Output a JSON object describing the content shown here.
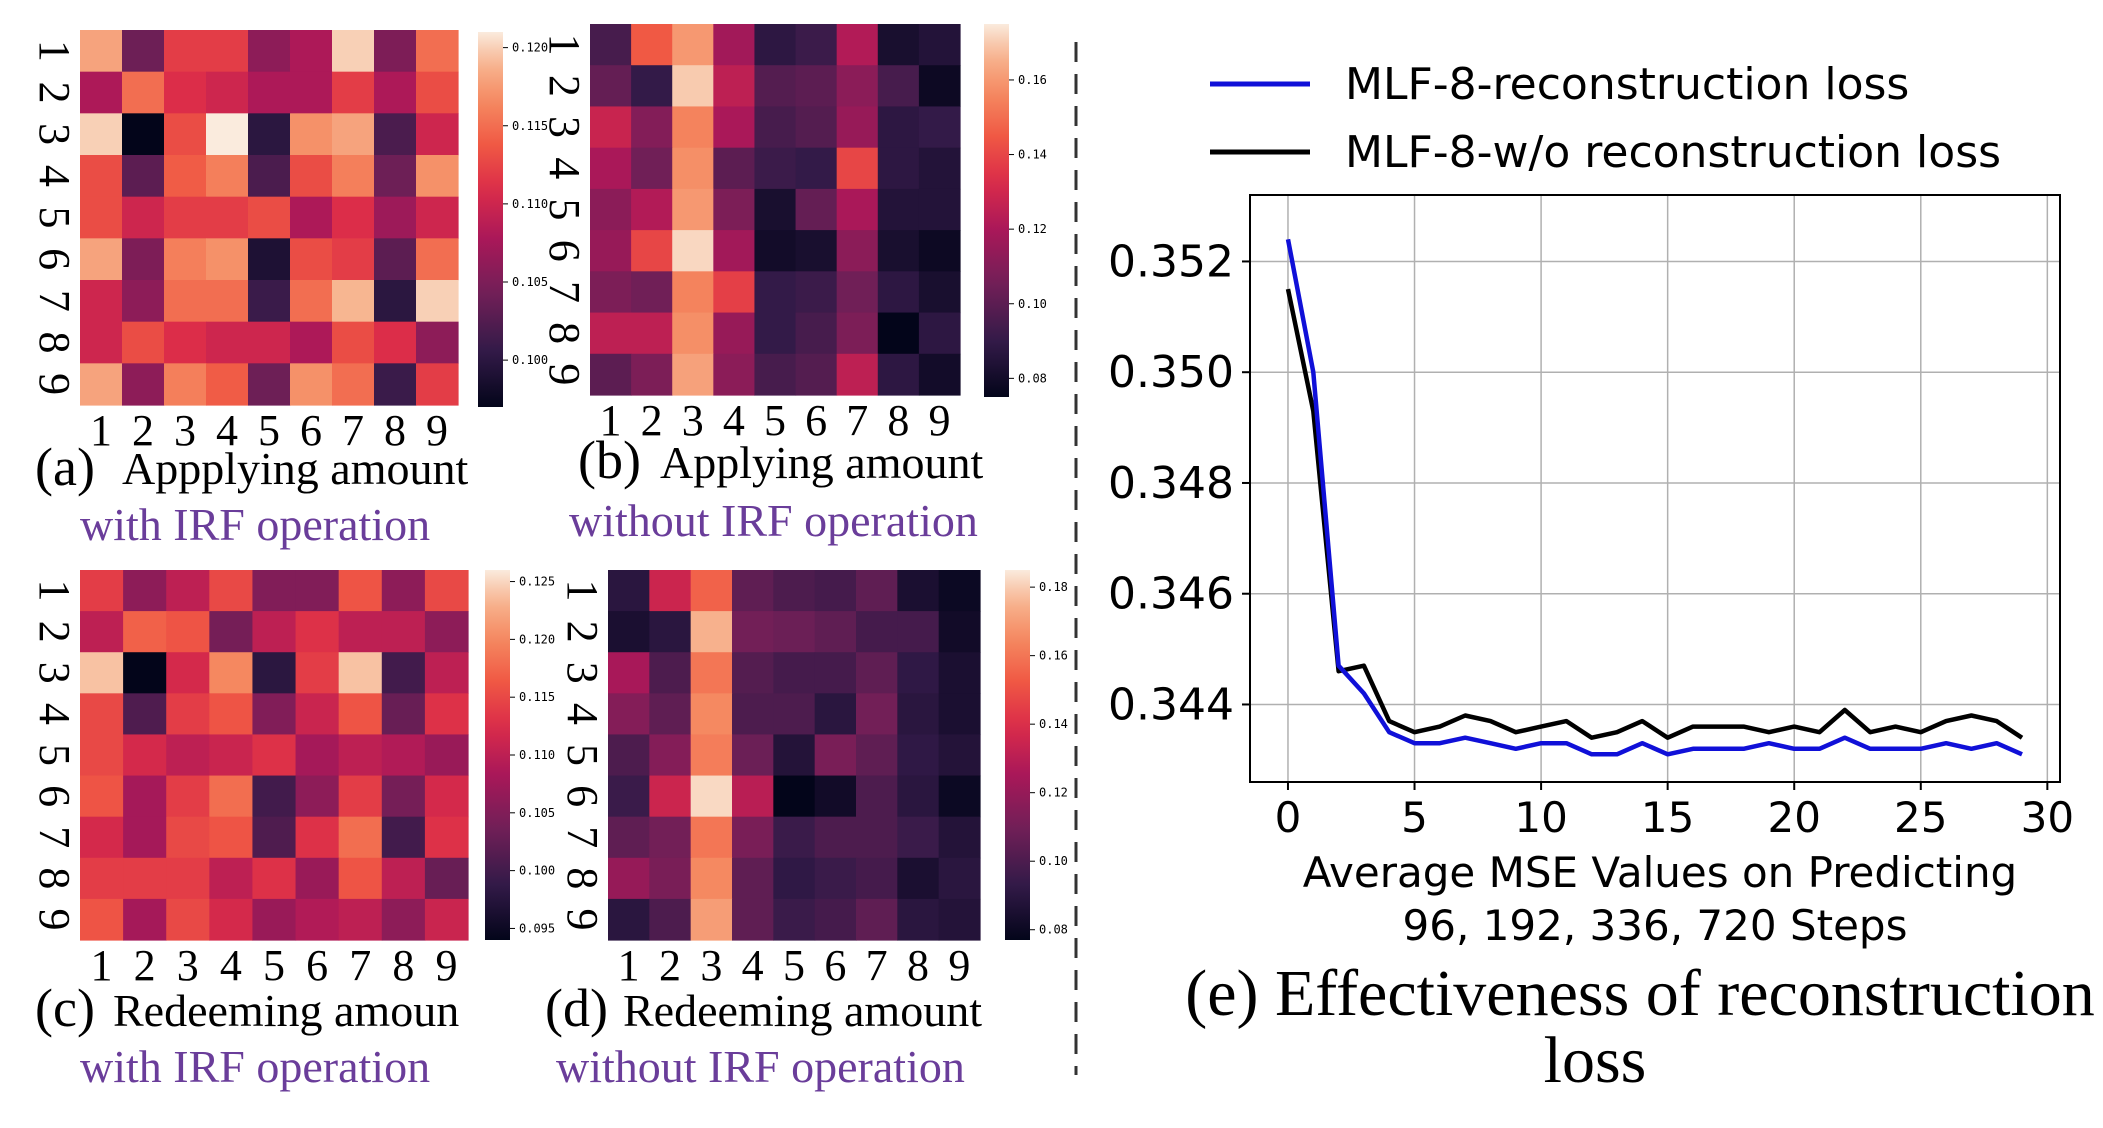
{
  "colors": {
    "purple_caption": "#6a3d9a",
    "blue_line": "#1010d8",
    "black_line": "#000000",
    "grid": "#b0b0b0"
  },
  "captions": {
    "a": {
      "label": "(a)",
      "text": "Appplying amount",
      "sub": "with IRF operation"
    },
    "b": {
      "label": "(b)",
      "text": "Applying amount",
      "sub": "without IRF operation"
    },
    "c": {
      "label": "(c)",
      "text": "Redeeming amoun",
      "sub": "with IRF operation"
    },
    "d": {
      "label": "(d)",
      "text": "Redeeming amount",
      "sub": "without IRF operation"
    },
    "e": {
      "line1": "(e) Effectiveness of reconstruction",
      "line2": "loss"
    }
  },
  "chart_data": [
    {
      "type": "heatmap",
      "id": "a",
      "title": "(a) Appplying amount with IRF operation",
      "row_labels": [
        "1",
        "2",
        "3",
        "4",
        "5",
        "6",
        "7",
        "8",
        "9"
      ],
      "col_labels": [
        "1",
        "2",
        "3",
        "4",
        "5",
        "6",
        "7",
        "8",
        "9"
      ],
      "colorbar": {
        "vmin": 0.097,
        "vmax": 0.121,
        "ticks": [
          0.1,
          0.105,
          0.11,
          0.115,
          0.12
        ],
        "tick_labels": [
          "0.100",
          "0.105",
          "0.110",
          "0.115",
          "0.120"
        ]
      },
      "values": [
        [
          0.118,
          0.104,
          0.112,
          0.112,
          0.106,
          0.108,
          0.12,
          0.105,
          0.115
        ],
        [
          0.108,
          0.115,
          0.111,
          0.11,
          0.108,
          0.108,
          0.112,
          0.108,
          0.113
        ],
        [
          0.12,
          0.097,
          0.113,
          0.121,
          0.1,
          0.117,
          0.118,
          0.102,
          0.11
        ],
        [
          0.113,
          0.103,
          0.114,
          0.116,
          0.102,
          0.113,
          0.116,
          0.104,
          0.117
        ],
        [
          0.113,
          0.11,
          0.112,
          0.112,
          0.113,
          0.108,
          0.111,
          0.107,
          0.11
        ],
        [
          0.118,
          0.105,
          0.116,
          0.117,
          0.099,
          0.113,
          0.112,
          0.103,
          0.115
        ],
        [
          0.11,
          0.106,
          0.115,
          0.115,
          0.101,
          0.115,
          0.119,
          0.1,
          0.12
        ],
        [
          0.11,
          0.113,
          0.111,
          0.11,
          0.11,
          0.108,
          0.113,
          0.111,
          0.106
        ],
        [
          0.118,
          0.106,
          0.116,
          0.114,
          0.104,
          0.117,
          0.115,
          0.101,
          0.112
        ]
      ]
    },
    {
      "type": "heatmap",
      "id": "b",
      "title": "(b) Applying amount without IRF operation",
      "row_labels": [
        "1",
        "2",
        "3",
        "4",
        "5",
        "6",
        "7",
        "8",
        "9"
      ],
      "col_labels": [
        "1",
        "2",
        "3",
        "4",
        "5",
        "6",
        "7",
        "8",
        "9"
      ],
      "colorbar": {
        "vmin": 0.075,
        "vmax": 0.175,
        "ticks": [
          0.08,
          0.1,
          0.12,
          0.14,
          0.16
        ],
        "tick_labels": [
          "0.08",
          "0.10",
          "0.12",
          "0.14",
          "0.16"
        ]
      },
      "values": [
        [
          0.095,
          0.145,
          0.16,
          0.118,
          0.088,
          0.092,
          0.122,
          0.082,
          0.085
        ],
        [
          0.102,
          0.09,
          0.17,
          0.125,
          0.098,
          0.1,
          0.112,
          0.095,
          0.078
        ],
        [
          0.128,
          0.11,
          0.155,
          0.12,
          0.095,
          0.098,
          0.115,
          0.088,
          0.09
        ],
        [
          0.12,
          0.105,
          0.158,
          0.1,
          0.092,
          0.09,
          0.14,
          0.088,
          0.085
        ],
        [
          0.112,
          0.122,
          0.16,
          0.108,
          0.082,
          0.102,
          0.12,
          0.085,
          0.085
        ],
        [
          0.115,
          0.14,
          0.172,
          0.118,
          0.08,
          0.082,
          0.112,
          0.082,
          0.078
        ],
        [
          0.108,
          0.105,
          0.155,
          0.138,
          0.09,
          0.092,
          0.105,
          0.088,
          0.082
        ],
        [
          0.125,
          0.125,
          0.158,
          0.115,
          0.09,
          0.095,
          0.108,
          0.075,
          0.088
        ],
        [
          0.1,
          0.108,
          0.162,
          0.112,
          0.095,
          0.098,
          0.125,
          0.088,
          0.08
        ]
      ]
    },
    {
      "type": "heatmap",
      "id": "c",
      "title": "(c) Redeeming amoun with IRF operation",
      "row_labels": [
        "1",
        "2",
        "3",
        "4",
        "5",
        "6",
        "7",
        "8",
        "9"
      ],
      "col_labels": [
        "1",
        "2",
        "3",
        "4",
        "5",
        "6",
        "7",
        "8",
        "9"
      ],
      "colorbar": {
        "vmin": 0.094,
        "vmax": 0.126,
        "ticks": [
          0.095,
          0.1,
          0.105,
          0.11,
          0.115,
          0.12,
          0.125
        ],
        "tick_labels": [
          "0.095",
          "0.100",
          "0.105",
          "0.110",
          "0.115",
          "0.120",
          "0.125"
        ]
      },
      "values": [
        [
          0.114,
          0.106,
          0.11,
          0.115,
          0.105,
          0.105,
          0.116,
          0.106,
          0.115
        ],
        [
          0.11,
          0.117,
          0.116,
          0.104,
          0.11,
          0.113,
          0.11,
          0.11,
          0.106
        ],
        [
          0.124,
          0.094,
          0.112,
          0.12,
          0.098,
          0.114,
          0.124,
          0.1,
          0.11
        ],
        [
          0.115,
          0.101,
          0.114,
          0.116,
          0.105,
          0.111,
          0.116,
          0.103,
          0.113
        ],
        [
          0.115,
          0.112,
          0.11,
          0.111,
          0.113,
          0.108,
          0.11,
          0.109,
          0.107
        ],
        [
          0.116,
          0.108,
          0.114,
          0.118,
          0.1,
          0.106,
          0.114,
          0.104,
          0.112
        ],
        [
          0.112,
          0.108,
          0.115,
          0.116,
          0.101,
          0.113,
          0.118,
          0.1,
          0.113
        ],
        [
          0.114,
          0.114,
          0.114,
          0.11,
          0.113,
          0.107,
          0.116,
          0.11,
          0.103
        ],
        [
          0.116,
          0.108,
          0.115,
          0.112,
          0.107,
          0.109,
          0.11,
          0.106,
          0.111
        ]
      ]
    },
    {
      "type": "heatmap",
      "id": "d",
      "title": "(d) Redeeming amount without IRF operation",
      "row_labels": [
        "1",
        "2",
        "3",
        "4",
        "5",
        "6",
        "7",
        "8",
        "9"
      ],
      "col_labels": [
        "1",
        "2",
        "3",
        "4",
        "5",
        "6",
        "7",
        "8",
        "9"
      ],
      "colorbar": {
        "vmin": 0.077,
        "vmax": 0.185,
        "ticks": [
          0.08,
          0.1,
          0.12,
          0.14,
          0.16,
          0.18
        ],
        "tick_labels": [
          "0.08",
          "0.10",
          "0.12",
          "0.14",
          "0.16",
          "0.18"
        ]
      },
      "values": [
        [
          0.09,
          0.135,
          0.155,
          0.105,
          0.1,
          0.098,
          0.105,
          0.085,
          0.08
        ],
        [
          0.085,
          0.09,
          0.175,
          0.11,
          0.108,
          0.105,
          0.098,
          0.098,
          0.082
        ],
        [
          0.125,
          0.1,
          0.16,
          0.102,
          0.098,
          0.098,
          0.105,
          0.092,
          0.085
        ],
        [
          0.115,
          0.105,
          0.165,
          0.1,
          0.1,
          0.09,
          0.11,
          0.09,
          0.085
        ],
        [
          0.1,
          0.115,
          0.162,
          0.108,
          0.088,
          0.112,
          0.105,
          0.092,
          0.088
        ],
        [
          0.095,
          0.135,
          0.182,
          0.13,
          0.077,
          0.082,
          0.1,
          0.09,
          0.08
        ],
        [
          0.105,
          0.11,
          0.16,
          0.112,
          0.095,
          0.1,
          0.1,
          0.095,
          0.088
        ],
        [
          0.12,
          0.112,
          0.165,
          0.105,
          0.092,
          0.095,
          0.098,
          0.085,
          0.09
        ],
        [
          0.09,
          0.1,
          0.17,
          0.105,
          0.095,
          0.098,
          0.105,
          0.09,
          0.088
        ]
      ]
    },
    {
      "type": "line",
      "id": "e",
      "title": "(e) Effectiveness of reconstruction loss",
      "xlabel": "Average MSE Values on Predicting",
      "xlabel2": "96, 192, 336, 720 Steps",
      "ylabel": "",
      "xlim": [
        -1.5,
        30.5
      ],
      "ylim": [
        0.3426,
        0.3532
      ],
      "xticks": [
        0,
        5,
        10,
        15,
        20,
        25,
        30
      ],
      "yticks": [
        0.344,
        0.346,
        0.348,
        0.35,
        0.352
      ],
      "ytick_labels": [
        "0.344",
        "0.346",
        "0.348",
        "0.350",
        "0.352"
      ],
      "grid": true,
      "legend_position": "top",
      "x": [
        0,
        1,
        2,
        3,
        4,
        5,
        6,
        7,
        8,
        9,
        10,
        11,
        12,
        13,
        14,
        15,
        16,
        17,
        18,
        19,
        20,
        21,
        22,
        23,
        24,
        25,
        26,
        27,
        28,
        29
      ],
      "series": [
        {
          "name": "MLF-8-reconstruction loss",
          "color": "#1010d8",
          "values": [
            0.3524,
            0.35,
            0.3447,
            0.3442,
            0.3435,
            0.3433,
            0.3433,
            0.3434,
            0.3433,
            0.3432,
            0.3433,
            0.3433,
            0.3431,
            0.3431,
            0.3433,
            0.3431,
            0.3432,
            0.3432,
            0.3432,
            0.3433,
            0.3432,
            0.3432,
            0.3434,
            0.3432,
            0.3432,
            0.3432,
            0.3433,
            0.3432,
            0.3433,
            0.3431
          ]
        },
        {
          "name": "MLF-8-w/o reconstruction loss",
          "color": "#000000",
          "values": [
            0.3515,
            0.3493,
            0.3446,
            0.3447,
            0.3437,
            0.3435,
            0.3436,
            0.3438,
            0.3437,
            0.3435,
            0.3436,
            0.3437,
            0.3434,
            0.3435,
            0.3437,
            0.3434,
            0.3436,
            0.3436,
            0.3436,
            0.3435,
            0.3436,
            0.3435,
            0.3439,
            0.3435,
            0.3436,
            0.3435,
            0.3437,
            0.3438,
            0.3437,
            0.3434
          ]
        }
      ]
    }
  ]
}
